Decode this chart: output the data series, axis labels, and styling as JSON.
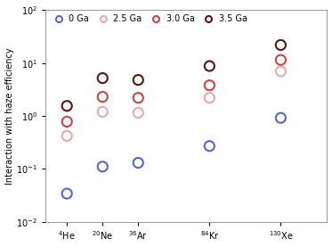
{
  "elements": [
    "$^4$He",
    "$^{20}$Ne",
    "$^{36}$Ar",
    "$^{84}$Kr",
    "$^{130}$Xe"
  ],
  "x_positions": [
    1,
    2,
    3,
    5,
    7
  ],
  "series": [
    {
      "label": "0 Ga",
      "edge_color": "#5566cc",
      "values": [
        0.034,
        0.11,
        0.13,
        0.27,
        0.92
      ]
    },
    {
      "label": "2.5 Ga",
      "edge_color": "#e8aaaa",
      "values": [
        0.42,
        1.2,
        1.15,
        2.2,
        7.0
      ]
    },
    {
      "label": "3.0 Ga",
      "edge_color": "#cc4444",
      "values": [
        0.78,
        2.3,
        2.2,
        3.8,
        11.5
      ]
    },
    {
      "label": "3.5 Ga",
      "edge_color": "#5a1515",
      "values": [
        1.55,
        5.2,
        4.8,
        8.8,
        22.0
      ]
    }
  ],
  "ylabel": "Interaction with haze efficiency",
  "ylim": [
    0.01,
    100
  ],
  "xlim": [
    0.4,
    8.3
  ],
  "background_color": "#ffffff",
  "marker_size": 8,
  "linewidth": 1.5,
  "legend_fontsize": 7,
  "ylabel_fontsize": 7,
  "tick_fontsize": 7
}
